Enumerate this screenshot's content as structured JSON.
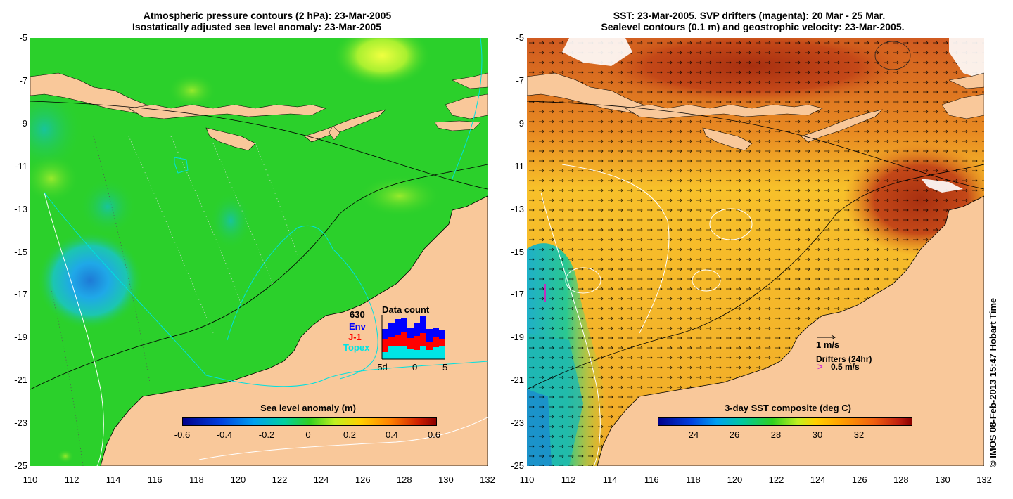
{
  "left": {
    "title_line1": "Atmospheric pressure contours (2 hPa): 23-Mar-2005",
    "title_line2": "Isostatically adjusted sea level anomaly: 23-Mar-2005",
    "colorbar_title": "Sea level anomaly (m)",
    "colorbar_ticks": [
      "-0.6",
      "-0.4",
      "-0.2",
      "0",
      "0.2",
      "0.4",
      "0.6"
    ],
    "data_count": {
      "title": "Data count",
      "total": "630",
      "series": [
        {
          "name": "Env",
          "color": "#0000ff"
        },
        {
          "name": "J-1",
          "color": "#ff0000"
        },
        {
          "name": "Topex",
          "color": "#00e5e5"
        }
      ],
      "x_ticks": [
        "-5d",
        "0",
        "5"
      ]
    }
  },
  "right": {
    "title_line1": "SST: 23-Mar-2005. SVP drifters (magenta): 20 Mar - 25 Mar.",
    "title_line2": "Sealevel contours (0.1 m) and geostrophic velocity: 23-Mar-2005.",
    "colorbar_title": "3-day SST composite (deg C)",
    "colorbar_ticks": [
      "24",
      "26",
      "28",
      "30",
      "32"
    ],
    "velocity_legend": "1 m/s",
    "drifter_legend_title": "Drifters (24hr)",
    "drifter_legend_value": "0.5 m/s",
    "drifter_symbol": ">"
  },
  "axes": {
    "x_ticks": [
      "110",
      "112",
      "114",
      "116",
      "118",
      "120",
      "122",
      "124",
      "126",
      "128",
      "130",
      "132"
    ],
    "y_ticks": [
      "-5",
      "-7",
      "-9",
      "-11",
      "-13",
      "-15",
      "-17",
      "-19",
      "-21",
      "-23",
      "-25"
    ]
  },
  "credit": "© IMOS 08-Feb-2013 15:47 Hobart Time",
  "colors": {
    "land": "#f9c89a",
    "ocean_left": "#2bd02b",
    "ocean_right": "#f5b12a",
    "sst_warm": "#c84a1a",
    "sst_cool": "#1fc4a0"
  }
}
